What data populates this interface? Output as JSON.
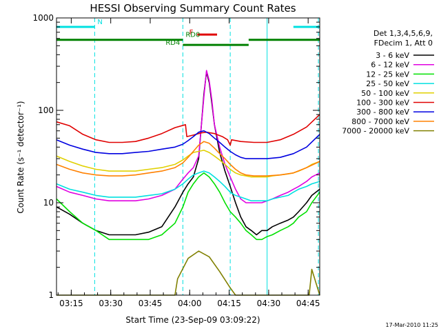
{
  "chart_data": {
    "type": "line",
    "title": "HESSI Observing Summary Count Rates",
    "xlabel": "Start Time (23-Sep-09 03:09:22)",
    "ylabel": "Count Rate (s⁻¹ detector⁻¹)",
    "yscale": "log",
    "ylim": [
      1,
      1000
    ],
    "xlim_minutes": [
      0,
      100
    ],
    "x_ticks": [
      {
        "label": "03:15",
        "min": 5.6
      },
      {
        "label": "03:30",
        "min": 20.6
      },
      {
        "label": "03:45",
        "min": 35.6
      },
      {
        "label": "04:00",
        "min": 50.6
      },
      {
        "label": "04:15",
        "min": 65.6
      },
      {
        "label": "04:30",
        "min": 80.6
      },
      {
        "label": "04:45",
        "min": 95.6
      }
    ],
    "y_ticks": [
      {
        "label": "1",
        "value": 1
      },
      {
        "label": "10",
        "value": 10
      },
      {
        "label": "100",
        "value": 100
      },
      {
        "label": "1000",
        "value": 1000
      }
    ],
    "legend_header": [
      "Det 1,3,4,5,6,9,",
      "FDecim 1, Att 0"
    ],
    "legend_placement": "right",
    "footer_date": "17-Mar-2010 11:25",
    "series": [
      {
        "name": "3 - 6 keV",
        "color": "#000000",
        "x": [
          0,
          5,
          10,
          15,
          20,
          25,
          30,
          35,
          40,
          45,
          48,
          50,
          52,
          54,
          56,
          57,
          58,
          59,
          60,
          62,
          64,
          66,
          68,
          70,
          72,
          74,
          76,
          78,
          80,
          82,
          85,
          88,
          90,
          92,
          95,
          97,
          100
        ],
        "y": [
          9,
          7.5,
          6,
          5,
          4.5,
          4.5,
          4.5,
          4.8,
          5.5,
          9,
          13,
          16,
          19,
          30,
          150,
          260,
          200,
          120,
          70,
          35,
          22,
          15,
          10,
          7,
          5.5,
          5,
          4.5,
          5,
          5,
          5.5,
          6,
          6.5,
          7,
          8,
          10,
          12,
          14
        ]
      },
      {
        "name": "6 - 12 keV",
        "color": "#e000e0",
        "x": [
          0,
          5,
          10,
          15,
          20,
          25,
          30,
          35,
          40,
          45,
          48,
          50,
          52,
          54,
          56,
          57,
          58,
          59,
          60,
          62,
          64,
          66,
          68,
          70,
          72,
          74,
          76,
          78,
          80,
          82,
          85,
          88,
          90,
          92,
          95,
          97,
          100
        ],
        "y": [
          15,
          13,
          12,
          11,
          10.5,
          10.5,
          10.5,
          11,
          12,
          14,
          18,
          21,
          24,
          32,
          140,
          270,
          210,
          130,
          70,
          40,
          26,
          19,
          14,
          11,
          10,
          10,
          10,
          10,
          10.5,
          11,
          12,
          13,
          14,
          15,
          17,
          19,
          21
        ]
      },
      {
        "name": "12 - 25 keV",
        "color": "#00e000",
        "x": [
          0,
          5,
          10,
          15,
          20,
          25,
          30,
          35,
          40,
          45,
          48,
          50,
          52,
          54,
          56,
          58,
          60,
          62,
          64,
          66,
          68,
          70,
          72,
          74,
          76,
          78,
          80,
          82,
          85,
          88,
          90,
          92,
          95,
          97,
          100
        ],
        "y": [
          11,
          8,
          6,
          5,
          4,
          4,
          4,
          4,
          4.5,
          6,
          9,
          13,
          16,
          19,
          21,
          19,
          16,
          13,
          10,
          8,
          7,
          6,
          5,
          4.5,
          4,
          4,
          4.3,
          4.5,
          5,
          5.5,
          6,
          7,
          8,
          10,
          13
        ]
      },
      {
        "name": "25 - 50 keV",
        "color": "#00e0e0",
        "x": [
          0,
          5,
          10,
          15,
          20,
          25,
          30,
          35,
          40,
          45,
          48,
          50,
          52,
          54,
          56,
          58,
          60,
          62,
          64,
          66,
          68,
          70,
          72,
          74,
          76,
          78,
          80,
          82,
          85,
          88,
          90,
          92,
          95,
          97,
          100
        ],
        "y": [
          16,
          14,
          13,
          12,
          11.5,
          11.5,
          11.5,
          12,
          12.5,
          14,
          16,
          18,
          20,
          21,
          22,
          21,
          19,
          17,
          15,
          13,
          12,
          11.5,
          11,
          10.5,
          10.5,
          10.5,
          10.5,
          11,
          11.5,
          12,
          13,
          14,
          15,
          16,
          17
        ]
      },
      {
        "name": "50 - 100 keV",
        "color": "#e0d000",
        "x": [
          0,
          5,
          10,
          15,
          20,
          25,
          30,
          35,
          40,
          45,
          48,
          50,
          52,
          54,
          56,
          58,
          60,
          62,
          64,
          66,
          68,
          70,
          72,
          74,
          76,
          78,
          80,
          82,
          85,
          88,
          90,
          92,
          95,
          97,
          100
        ],
        "y": [
          32,
          28,
          25,
          23,
          22,
          22,
          22,
          23,
          24,
          26,
          29,
          32,
          35,
          36,
          37,
          35,
          32,
          29,
          26,
          23,
          21,
          20,
          19.5,
          19,
          19,
          19,
          19,
          19.5,
          20,
          20.5,
          21,
          22,
          24,
          26,
          28
        ]
      },
      {
        "name": "100 - 300 keV",
        "color": "#e00000",
        "x": [
          0,
          5,
          10,
          15,
          20,
          25,
          30,
          35,
          40,
          45,
          49,
          49.5,
          52,
          55,
          57,
          60,
          63,
          65,
          66,
          66.5,
          70,
          75,
          80,
          85,
          90,
          95,
          100
        ],
        "y": [
          75,
          68,
          55,
          48,
          45,
          45,
          46,
          50,
          56,
          65,
          70,
          52,
          54,
          57,
          58,
          56,
          52,
          48,
          42,
          48,
          46,
          45,
          45,
          48,
          55,
          66,
          90
        ]
      },
      {
        "name": "300 - 800 keV",
        "color": "#0000e0",
        "x": [
          0,
          5,
          10,
          15,
          20,
          25,
          30,
          35,
          40,
          45,
          48,
          50,
          52,
          54,
          56,
          58,
          60,
          62,
          64,
          66,
          68,
          70,
          72,
          75,
          80,
          85,
          90,
          95,
          100
        ],
        "y": [
          48,
          42,
          38,
          35,
          34,
          34,
          35,
          36,
          38,
          40,
          43,
          47,
          52,
          58,
          60,
          56,
          50,
          45,
          40,
          36,
          33,
          31,
          30,
          30,
          30,
          31,
          34,
          40,
          55
        ]
      },
      {
        "name": "800 - 7000 keV",
        "color": "#ff8000",
        "x": [
          0,
          5,
          10,
          15,
          20,
          25,
          30,
          35,
          40,
          45,
          48,
          50,
          52,
          54,
          56,
          58,
          60,
          62,
          64,
          66,
          68,
          70,
          72,
          75,
          80,
          85,
          90,
          95,
          100
        ],
        "y": [
          26,
          23,
          21,
          20,
          19.5,
          19.5,
          20,
          21,
          22,
          24,
          27,
          31,
          36,
          42,
          46,
          44,
          39,
          34,
          30,
          26,
          23,
          21,
          20,
          19.5,
          19.5,
          20,
          21,
          24,
          28
        ]
      },
      {
        "name": "7000 - 20000 keV",
        "color": "#808000",
        "x": [
          0,
          10,
          20,
          30,
          40,
          45,
          46,
          50,
          54,
          58,
          62,
          66,
          68,
          70,
          80,
          90,
          96,
          97,
          100
        ],
        "y": [
          1,
          1,
          1,
          1,
          1,
          1,
          1.5,
          2.5,
          3,
          2.6,
          1.8,
          1.2,
          1,
          1,
          1,
          1,
          1,
          1.9,
          1
        ]
      }
    ],
    "annotations": {
      "flags": [
        {
          "label": "N",
          "color": "#00e0e0",
          "min_ranges": [
            [
              0,
              14.5
            ],
            [
              90,
              100
            ]
          ],
          "value": 800
        },
        {
          "label": "F",
          "color": "#e00000",
          "min_ranges": [
            [
              53.5,
              61
            ]
          ],
          "value": 660
        },
        {
          "label": "RD0",
          "color": "#008000",
          "min_ranges": [
            [
              0,
              48
            ],
            [
              73,
              100
            ]
          ],
          "value": 580
        },
        {
          "label": "RD4",
          "color": "#008000",
          "min_ranges": [
            [
              48,
              73
            ]
          ],
          "value": 510
        }
      ],
      "vlines": [
        {
          "min": 0,
          "color": "#00e0e0",
          "style": "solid"
        },
        {
          "min": 14.5,
          "color": "#00e0e0",
          "style": "dashed"
        },
        {
          "min": 48,
          "color": "#00e0e0",
          "style": "dashed"
        },
        {
          "min": 66,
          "color": "#00e0e0",
          "style": "dashed"
        },
        {
          "min": 80,
          "color": "#00e0e0",
          "style": "solid"
        },
        {
          "min": 99.5,
          "color": "#00e0e0",
          "style": "dashed"
        }
      ]
    }
  }
}
